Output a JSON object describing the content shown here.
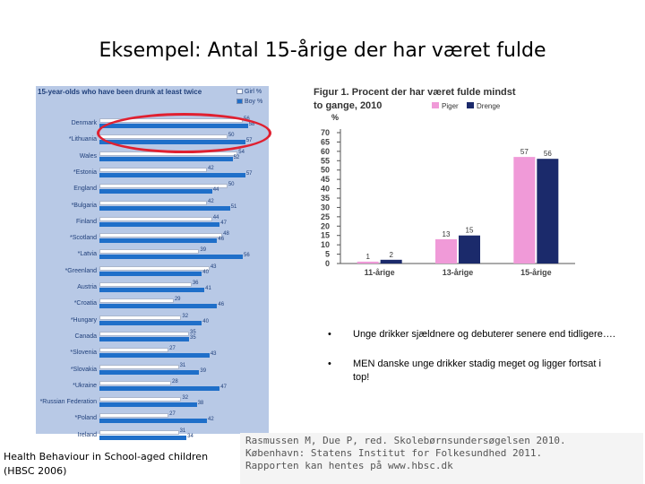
{
  "slide": {
    "title": "Eksempel: Antal 15-årige der har været fulde",
    "footer_left_line1": "Health Behaviour in School-aged children",
    "footer_left_line2": "(HBSC 2006)",
    "bullets": [
      "Unge drikker sjældnere og debuterer senere end tidligere….",
      "MEN danske unge drikker stadig meget og ligger fortsat i top!"
    ],
    "bullet_symbol": "•",
    "citation_lines": [
      "Rasmussen M, Due P, red. Skolebørnsundersøgelsen 2010.",
      "København: Statens Institut for Folkesundhed 2011.",
      "Rapporten kan hentes på www.hbsc.dk"
    ]
  },
  "colors": {
    "left_panel_bg": "#b8c9e6",
    "girl": "#ffffff",
    "boy": "#1f6fc9",
    "pige": "#f09ad8",
    "dreng": "#1b2a6b",
    "highlight": "#e02030"
  },
  "chart_data": [
    {
      "type": "bar",
      "orientation": "horizontal",
      "title": "15-year-olds who have been drunk at least twice",
      "legend": [
        "Girl %",
        "Boy %"
      ],
      "categories": [
        "Denmark",
        "*Lithuania",
        "Wales",
        "*Estonia",
        "England",
        "*Bulgaria",
        "Finland",
        "*Scotland",
        "*Latvia",
        "*Greenland",
        "Austria",
        "*Croatia",
        "*Hungary",
        "Canada",
        "*Slovenia",
        "*Slovakia",
        "*Ukraine",
        "*Russian Federation",
        "*Poland",
        "Ireland"
      ],
      "series": [
        {
          "name": "Girl %",
          "values": [
            56,
            50,
            54,
            42,
            50,
            42,
            44,
            48,
            39,
            43,
            36,
            29,
            32,
            35,
            27,
            31,
            28,
            32,
            27,
            31
          ]
        },
        {
          "name": "Boy %",
          "values": [
            58,
            57,
            52,
            57,
            44,
            51,
            47,
            46,
            56,
            40,
            41,
            46,
            40,
            35,
            43,
            39,
            47,
            38,
            42,
            34
          ]
        }
      ],
      "xlim": [
        0,
        70
      ]
    },
    {
      "type": "bar",
      "title": "Figur 1. Procent der har været fulde mindst to gange, 2010",
      "ylabel": "%",
      "legend": [
        "Piger",
        "Drenge"
      ],
      "categories": [
        "11-årige",
        "13-årige",
        "15-årige"
      ],
      "series": [
        {
          "name": "Piger",
          "values": [
            1,
            13,
            57
          ]
        },
        {
          "name": "Drenge",
          "values": [
            2,
            15,
            56
          ]
        }
      ],
      "ylim": [
        0,
        70
      ],
      "yticks": [
        0,
        5,
        10,
        15,
        20,
        25,
        30,
        35,
        40,
        45,
        50,
        55,
        60,
        65,
        70
      ]
    }
  ]
}
